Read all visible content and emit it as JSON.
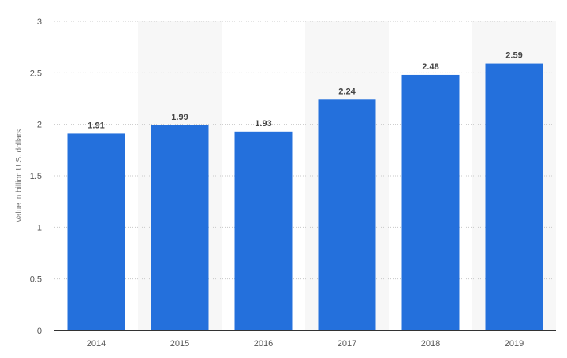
{
  "chart_data": {
    "type": "bar",
    "categories": [
      "2014",
      "2015",
      "2016",
      "2017",
      "2018",
      "2019"
    ],
    "values": [
      1.91,
      1.99,
      1.93,
      2.24,
      2.48,
      2.59
    ],
    "value_labels": [
      "1.91",
      "1.99",
      "1.93",
      "2.24",
      "2.48",
      "2.59"
    ],
    "title": "",
    "xlabel": "",
    "ylabel": "Value in billion U.S. dollars",
    "ylim": [
      0,
      3
    ],
    "yticks": [
      0,
      0.5,
      1,
      1.5,
      2,
      2.5,
      3
    ],
    "ytick_labels": [
      "0",
      "0.5",
      "1",
      "1.5",
      "2",
      "2.5",
      "3"
    ],
    "grid": true,
    "legend": "none",
    "bar_color": "#2470dc",
    "band_color": "#f7f7f7",
    "grid_color": "#c8c8c8"
  }
}
